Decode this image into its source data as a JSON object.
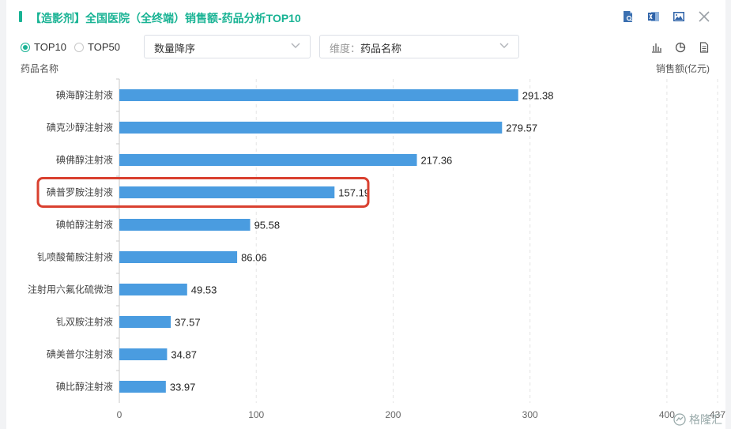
{
  "header": {
    "title": "【造影剂】全国医院（全终端）销售额-药品分析TOP10",
    "icons": [
      "report-search-icon",
      "excel-export-icon",
      "image-export-icon",
      "close-icon"
    ]
  },
  "controls": {
    "radios": [
      {
        "label": "TOP10",
        "selected": true
      },
      {
        "label": "TOP50",
        "selected": false
      }
    ],
    "sort_select": {
      "value": "数量降序"
    },
    "dimension_select": {
      "prefix": "维度：",
      "value": "药品名称"
    },
    "view_icons": [
      "bar-chart-icon",
      "pie-chart-icon",
      "document-icon"
    ]
  },
  "watermark": {
    "text": "格隆汇"
  },
  "colors": {
    "bar": "#4a9ce0",
    "accent": "#19b394",
    "highlight": "#d9402f"
  },
  "chart_data": {
    "type": "bar",
    "orientation": "horizontal",
    "title": "",
    "ylabel": "药品名称",
    "xlabel": "销售额(亿元)",
    "categories": [
      "碘海醇注射液",
      "碘克沙醇注射液",
      "碘佛醇注射液",
      "碘普罗胺注射液",
      "碘帕醇注射液",
      "钆喷酸葡胺注射液",
      "注射用六氟化硫微泡",
      "钆双胺注射液",
      "碘美普尔注射液",
      "碘比醇注射液"
    ],
    "values": [
      291.38,
      279.57,
      217.36,
      157.19,
      95.58,
      86.06,
      49.53,
      37.57,
      34.87,
      33.97
    ],
    "value_labels": [
      "291.38",
      "279.57",
      "217.36",
      "157.19",
      "95.58",
      "86.06",
      "49.53",
      "37.57",
      "34.87",
      "33.97"
    ],
    "xlim": [
      0,
      437
    ],
    "x_ticks": [
      "0",
      "100",
      "200",
      "300",
      "400",
      "437"
    ],
    "x_tick_values": [
      0,
      100,
      200,
      300,
      400,
      437
    ],
    "grid": true,
    "highlighted_category": "碘普罗胺注射液"
  }
}
